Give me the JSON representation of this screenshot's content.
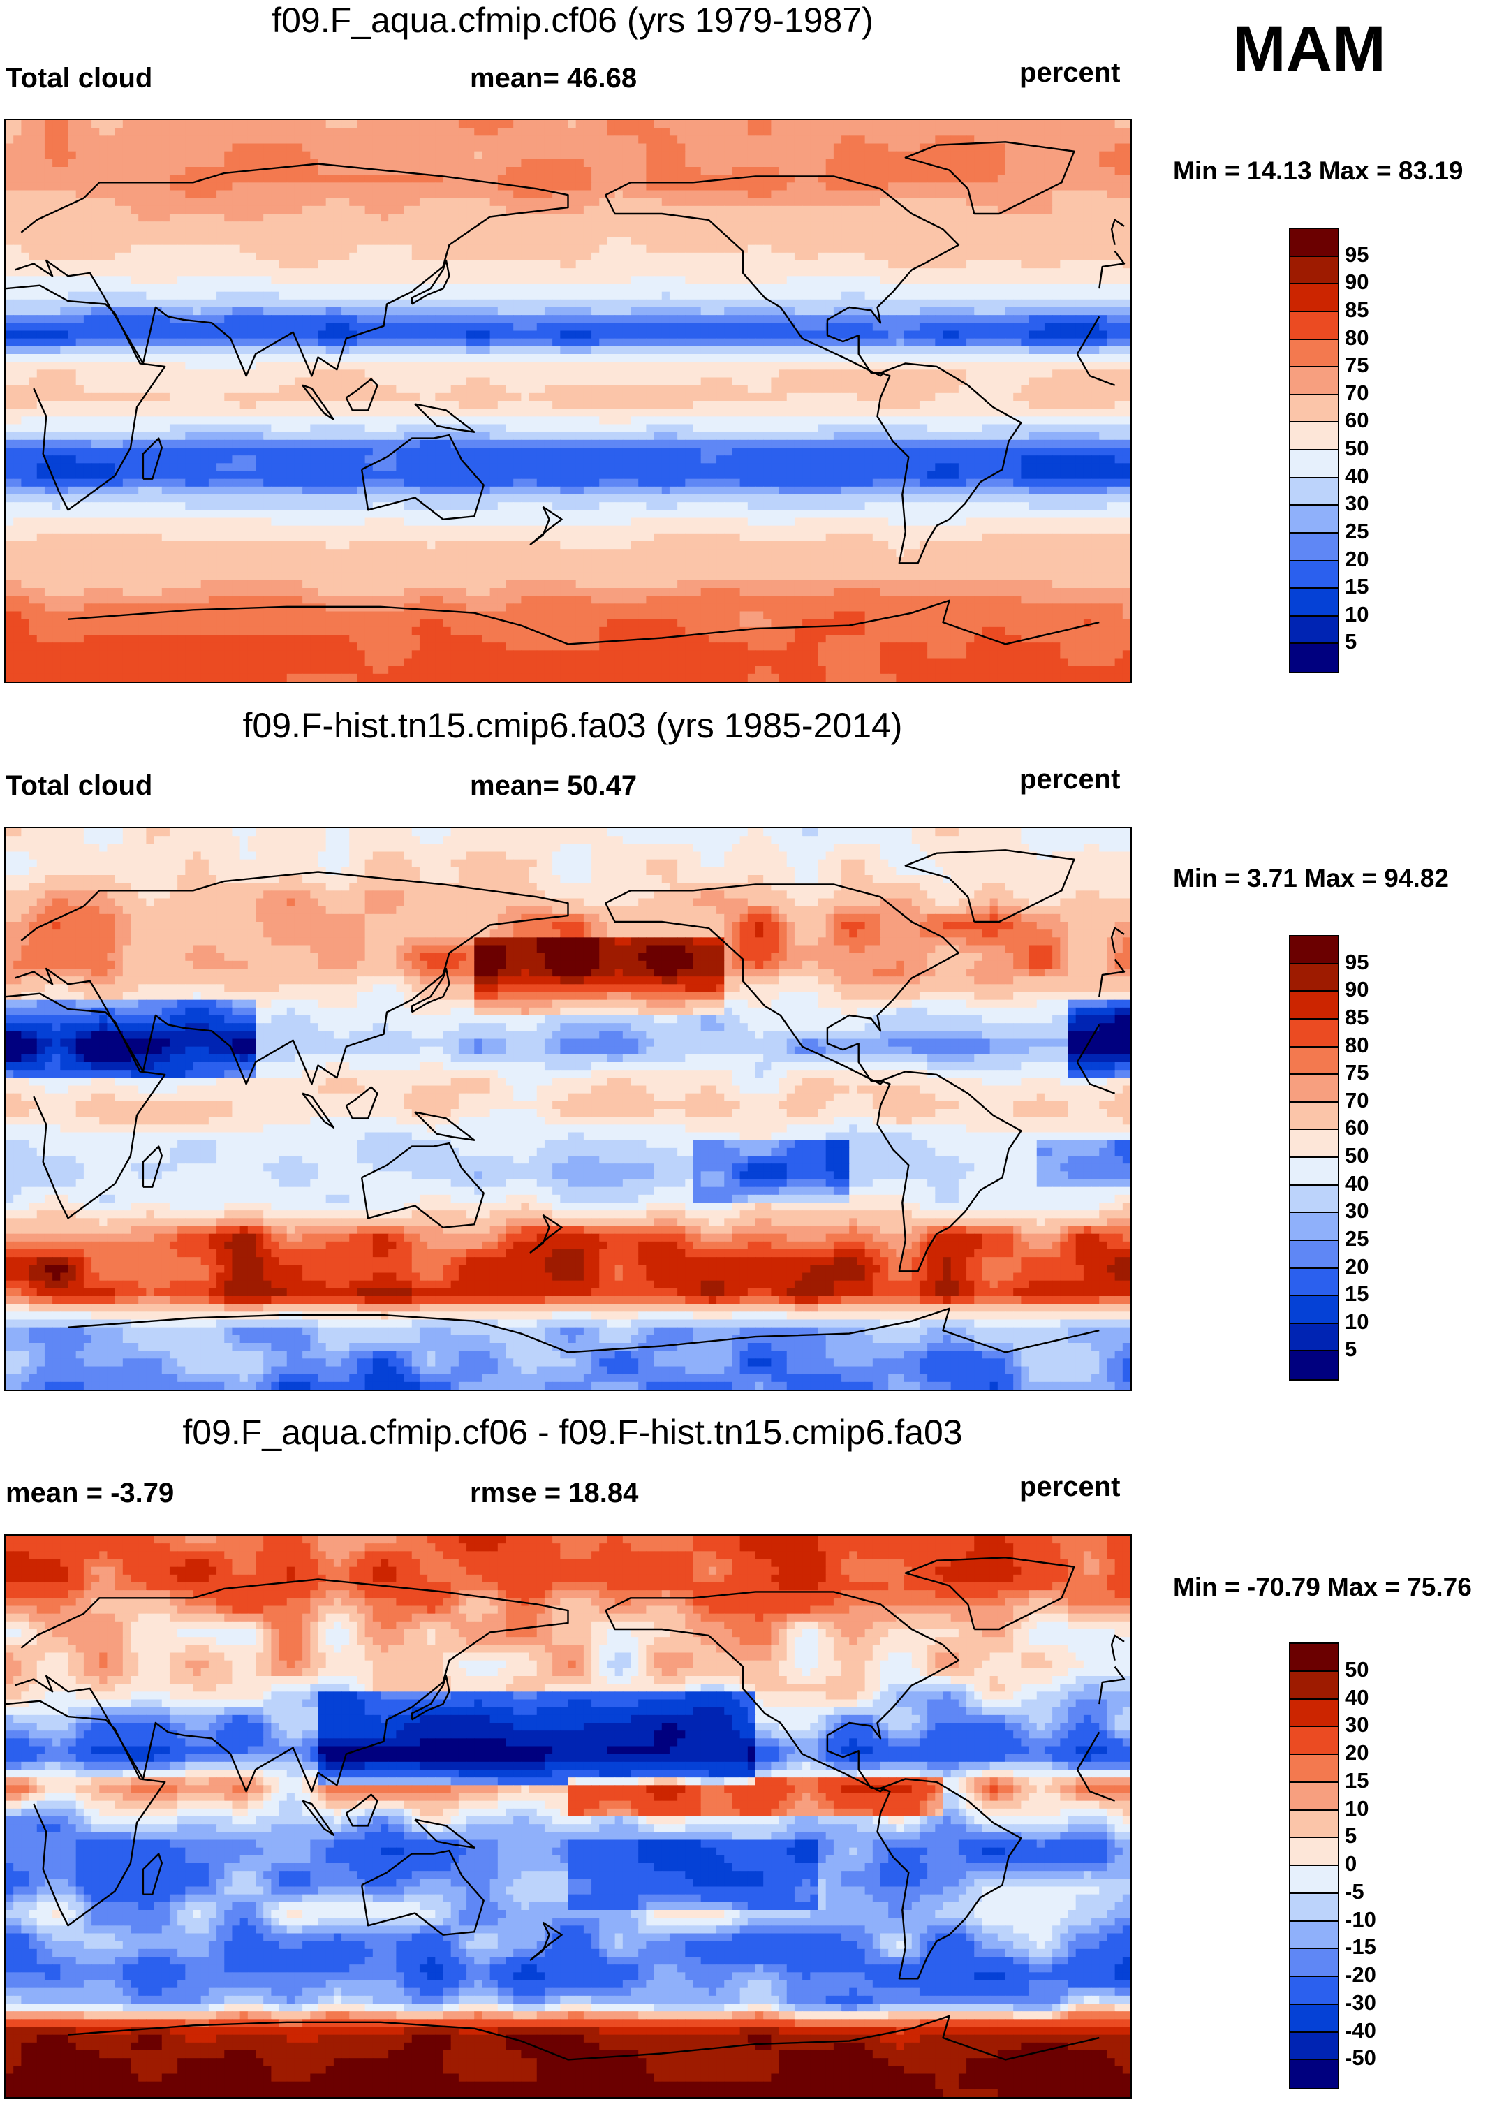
{
  "season": "MAM",
  "palettes": {
    "abs": [
      "#00007f",
      "#0024b3",
      "#0541d6",
      "#2b60ee",
      "#5f87f5",
      "#8fb0fa",
      "#bcd3fb",
      "#e6f0fc",
      "#fde6d8",
      "#fbc5a9",
      "#f79f7f",
      "#f3794f",
      "#eb4b22",
      "#cc2500",
      "#9e1b00",
      "#6b0000"
    ],
    "diff": [
      "#00007f",
      "#0024b3",
      "#0541d6",
      "#2b60ee",
      "#5f87f5",
      "#8fb0fa",
      "#bcd3fb",
      "#e6f0fc",
      "#fde6d8",
      "#fbc5a9",
      "#f79f7f",
      "#f3794f",
      "#eb4b22",
      "#cc2500",
      "#9e1b00",
      "#6b0000"
    ]
  },
  "panels": [
    {
      "title": "f09.F_aqua.cfmip.cf06 (yrs 1979-1987)",
      "left_label": "Total cloud",
      "center_label": "mean=  46.68",
      "units": "percent",
      "minmax": "Min =  14.13 Max =  83.19",
      "chart_data": {
        "type": "heatmap",
        "variable": "Total cloud",
        "units": "percent",
        "mean": 46.68,
        "min": 14.13,
        "max": 83.19,
        "colorbar_levels": [
          "95",
          "90",
          "85",
          "80",
          "75",
          "70",
          "60",
          "50",
          "40",
          "30",
          "25",
          "20",
          "15",
          "10",
          "5"
        ],
        "pattern": "zonal",
        "zonal_lat": [
          90,
          70,
          55,
          45,
          35,
          25,
          20,
          10,
          0,
          -5,
          -15,
          -25,
          -35,
          -45,
          -55,
          -65,
          -80,
          -90
        ],
        "zonal_value": [
          72,
          75,
          65,
          60,
          44,
          18,
          16,
          58,
          62,
          52,
          18,
          16,
          45,
          62,
          66,
          76,
          80,
          82
        ]
      }
    },
    {
      "title": "f09.F-hist.tn15.cmip6.fa03 (yrs 1985-2014)",
      "left_label": "Total cloud",
      "center_label": "mean=  50.47",
      "units": "percent",
      "minmax": "Min =   3.71 Max =  94.82",
      "chart_data": {
        "type": "heatmap",
        "variable": "Total cloud",
        "units": "percent",
        "mean": 50.47,
        "min": 3.71,
        "max": 94.82,
        "colorbar_levels": [
          "95",
          "90",
          "85",
          "80",
          "75",
          "70",
          "60",
          "50",
          "40",
          "30",
          "25",
          "20",
          "15",
          "10",
          "5"
        ],
        "pattern": "observed",
        "zonal_lat": [
          90,
          75,
          60,
          45,
          30,
          20,
          10,
          0,
          -10,
          -20,
          -30,
          -40,
          -50,
          -60,
          -70,
          -90
        ],
        "zonal_value": [
          50,
          55,
          75,
          72,
          40,
          28,
          50,
          62,
          40,
          35,
          48,
          80,
          88,
          85,
          30,
          20
        ]
      }
    },
    {
      "title": "f09.F_aqua.cfmip.cf06 - f09.F-hist.tn15.cmip6.fa03",
      "left_label": "mean =  -3.79",
      "center_label": "rmse =  18.84",
      "units": "percent",
      "minmax": "Min = -70.79 Max =  75.76",
      "chart_data": {
        "type": "heatmap",
        "variable": "Total cloud difference",
        "units": "percent",
        "mean": -3.79,
        "rmse": 18.84,
        "min": -70.79,
        "max": 75.76,
        "colorbar_levels": [
          "50",
          "40",
          "30",
          "20",
          "15",
          "10",
          "5",
          "0",
          "-5",
          "-10",
          "-15",
          "-20",
          "-30",
          "-40",
          "-50"
        ],
        "pattern": "difference",
        "zonal_lat": [
          90,
          75,
          60,
          45,
          30,
          20,
          10,
          0,
          -10,
          -20,
          -30,
          -40,
          -50,
          -60,
          -70,
          -90
        ],
        "zonal_value": [
          22,
          25,
          8,
          3,
          -15,
          -25,
          10,
          -5,
          -22,
          -18,
          -8,
          -15,
          -22,
          -12,
          45,
          60
        ]
      }
    }
  ]
}
